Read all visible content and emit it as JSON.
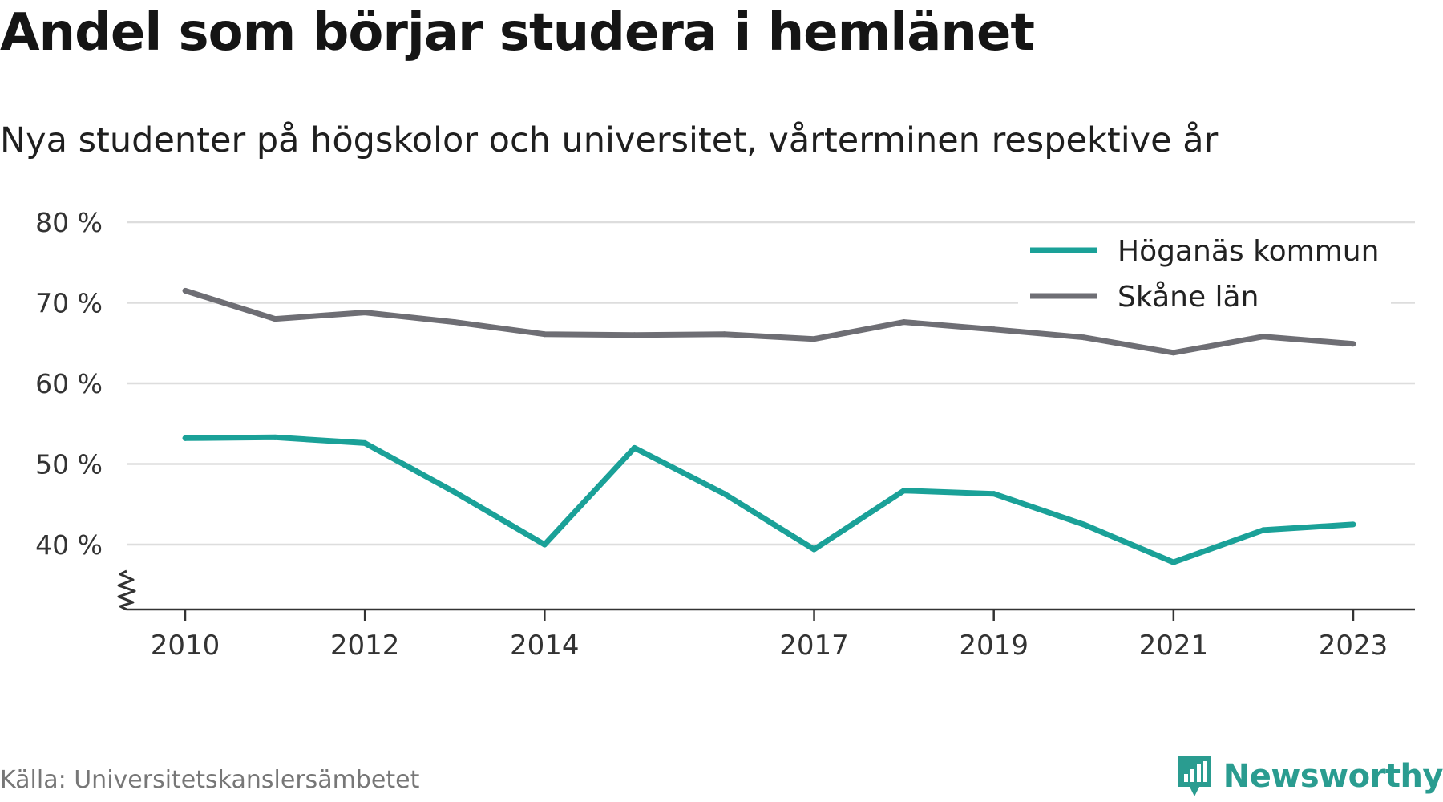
{
  "title": "Andel som börjar studera i hemlänet",
  "subtitle": "Nya studenter på högskolor och universitet, vårterminen respektive år",
  "source": "Källa: Universitetskanslersämbetet",
  "brand": {
    "name": "Newsworthy",
    "icon": "newsworthy-logo-icon",
    "color": "#2a9c90"
  },
  "chart_data": {
    "type": "line",
    "x": [
      2010,
      2011,
      2012,
      2013,
      2014,
      2015,
      2016,
      2017,
      2018,
      2019,
      2020,
      2021,
      2022,
      2023
    ],
    "x_ticks": [
      2010,
      2012,
      2014,
      2017,
      2019,
      2021,
      2023
    ],
    "y_ticks": [
      40,
      50,
      60,
      70,
      80
    ],
    "y_tick_labels": [
      "40 %",
      "50 %",
      "60 %",
      "70 %",
      "80 %"
    ],
    "ylim": [
      32,
      80
    ],
    "axis_break": true,
    "grid": true,
    "legend_position": "top-right",
    "series": [
      {
        "name": "Höganäs kommun",
        "color": "#1aa198",
        "values": [
          53.2,
          53.3,
          52.6,
          46.5,
          40.0,
          52.0,
          46.3,
          39.4,
          46.7,
          46.3,
          42.5,
          37.8,
          41.8,
          42.5
        ]
      },
      {
        "name": "Skåne län",
        "color": "#6e6e74",
        "values": [
          71.5,
          68.0,
          68.8,
          67.6,
          66.1,
          66.0,
          66.1,
          65.5,
          67.6,
          66.7,
          65.7,
          63.8,
          65.8,
          64.9
        ]
      }
    ]
  }
}
